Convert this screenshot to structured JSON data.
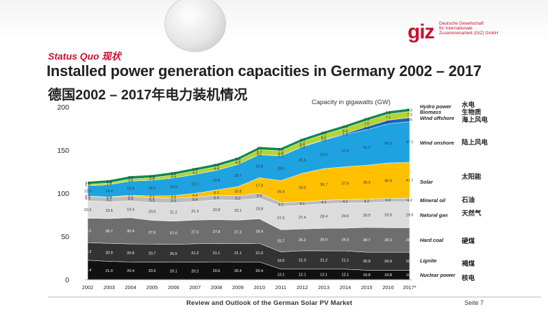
{
  "header": {
    "logo_word": "giz",
    "logo_lines": [
      "Deutsche Gesellschaft",
      "für Internationale",
      "Zusammenarbeit (GIZ) GmbH"
    ],
    "subtitle": "Status Quo 现状",
    "title": "Installed power generation capacities in Germany 2002 – 2017",
    "title_cn": "德国2002 – 2017年电力装机情况"
  },
  "footer": {
    "text": "Review and Outlook of the German Solar PV Market",
    "page": "Seite 7"
  },
  "colors": {
    "Nuclear power": "#111111",
    "Lignite": "#333333",
    "Hard coal": "#6e6e6e",
    "Natural gas": "#dcdcdc",
    "Mineral oil": "#bcbcbc",
    "Solar": "#ffc000",
    "Wind onshore": "#1fa3e0",
    "Wind offshore": "#1565c0",
    "Biomass": "#b5d334",
    "Hydro power": "#0e8a4f"
  },
  "chart_data": {
    "type": "area",
    "title": "Capacity in gigawatts (GW)",
    "x": [
      "2002",
      "2003",
      "2004",
      "2005",
      "2006",
      "2007",
      "2008",
      "2009",
      "2010",
      "2011",
      "2012",
      "2013",
      "2014",
      "2015",
      "2016",
      "2017*"
    ],
    "ylim": [
      0,
      200
    ],
    "yticks": [
      "0",
      "50",
      "100",
      "150",
      "200"
    ],
    "series": [
      {
        "name": "Nuclear power",
        "label_cn": "核电",
        "values": [
          22.4,
          21.0,
          20.4,
          20.3,
          20.1,
          20.2,
          20.5,
          20.4,
          20.4,
          12.1,
          12.1,
          12.1,
          12.1,
          10.8,
          10.8,
          10.8
        ]
      },
      {
        "name": "Lignite",
        "label_cn": "褐煤",
        "values": [
          20.3,
          20.9,
          20.8,
          20.7,
          20.5,
          21.2,
          21.1,
          21.1,
          21.5,
          19.9,
          21.3,
          21.2,
          21.1,
          20.9,
          20.9,
          20.9
        ]
      },
      {
        "name": "Hard coal",
        "label_cn": "硬煤",
        "values": [
          28.3,
          28.7,
          30.4,
          27.6,
          27.0,
          27.5,
          27.8,
          27.3,
          28.4,
          25.7,
          25.2,
          26.0,
          26.3,
          28.7,
          28.3,
          28.3
        ]
      },
      {
        "name": "Natural gas",
        "label_cn": "天然气",
        "values": [
          20.3,
          19.5,
          19.4,
          20.6,
          21.2,
          21.3,
          22.8,
          23.1,
          23.8,
          27.3,
          27.4,
          28.4,
          29.0,
          28.5,
          29.9,
          29.9
        ]
      },
      {
        "name": "Mineral oil",
        "label_cn": "石油",
        "values": [
          5.1,
          5.1,
          5.6,
          5.5,
          5.5,
          5.4,
          5.4,
          5.2,
          5.9,
          4.2,
          4.1,
          4.1,
          4.2,
          4.2,
          4.2,
          4.2
        ]
      },
      {
        "name": "Solar",
        "label_cn": "太阳能",
        "values": [
          0.3,
          0.4,
          1.1,
          2.1,
          2.9,
          4.2,
          6.1,
          10.6,
          17.9,
          25.4,
          33.0,
          36.7,
          37.9,
          39.3,
          40.9,
          41.7
        ]
      },
      {
        "name": "Wind onshore",
        "label_cn": "陆上风电",
        "values": [
          12.0,
          14.4,
          16.4,
          18.3,
          20.5,
          22.1,
          22.8,
          25.7,
          26.8,
          28.6,
          30.6,
          33.0,
          37.6,
          41.2,
          45.5,
          47.1
        ]
      },
      {
        "name": "Wind offshore",
        "label_cn": "海上风电",
        "values": [
          0.0,
          0.0,
          0.0,
          0.0,
          0.0,
          0.0,
          0.0,
          0.0,
          0.1,
          0.2,
          0.3,
          0.5,
          1.0,
          3.4,
          4.1,
          4.6
        ]
      },
      {
        "name": "Biomass",
        "label_cn": "生物质",
        "values": [
          1.5,
          1.9,
          2.5,
          2.8,
          3.5,
          4.1,
          4.4,
          4.8,
          5.7,
          5.8,
          6.0,
          6.2,
          6.4,
          7.0,
          7.1,
          7.3
        ]
      },
      {
        "name": "Hydro power",
        "label_cn": "水电",
        "values": [
          3.3,
          3.3,
          3.3,
          3.3,
          3.3,
          3.3,
          3.3,
          3.3,
          3.3,
          3.3,
          3.3,
          3.3,
          3.3,
          3.3,
          3.3,
          3.3
        ]
      }
    ]
  }
}
